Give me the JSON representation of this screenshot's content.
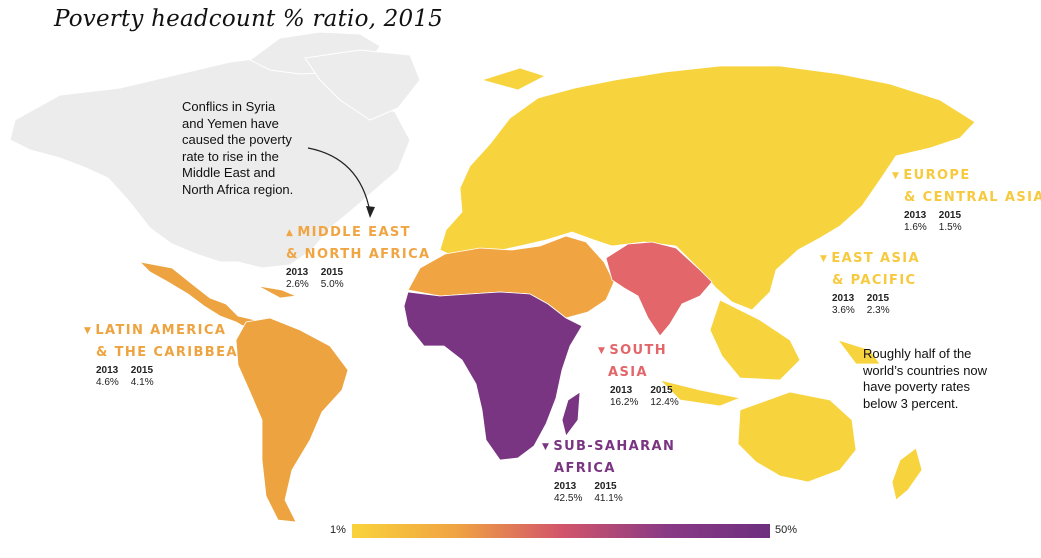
{
  "title": "Poverty headcount % ratio, 2015",
  "colors": {
    "no_data": "#ececec",
    "europe_central_asia": "#f7d33d",
    "east_asia_pacific": "#f6cc3c",
    "middle_east_north_africa": "#f0a542",
    "latin_america_caribbean": "#eda33f",
    "south_asia": "#e2666a",
    "sub_saharan_africa": "#7a3582"
  },
  "regions": [
    {
      "key": "mena",
      "name_line1": "MIDDLE EAST",
      "name_line2": "& NORTH AFRICA",
      "arrow": "▲",
      "trend": "up",
      "color": "#f0a542",
      "y2013_label": "2013",
      "y2015_label": "2015",
      "v2013": "2.6%",
      "v2015": "5.0%"
    },
    {
      "key": "eca",
      "name_line1": "EUROPE",
      "name_line2": "& CENTRAL ASIA",
      "arrow": "▼",
      "trend": "down",
      "color": "#f7c93d",
      "y2013_label": "2013",
      "y2015_label": "2015",
      "v2013": "1.6%",
      "v2015": "1.5%"
    },
    {
      "key": "eap",
      "name_line1": "EAST ASIA",
      "name_line2": "& PACIFIC",
      "arrow": "▼",
      "trend": "down",
      "color": "#f7c93d",
      "y2013_label": "2013",
      "y2015_label": "2015",
      "v2013": "3.6%",
      "v2015": "2.3%"
    },
    {
      "key": "lac",
      "name_line1": "LATIN AMERICA",
      "name_line2": "& THE CARIBBEAN",
      "arrow": "▼",
      "trend": "down",
      "color": "#eda33f",
      "y2013_label": "2013",
      "y2015_label": "2015",
      "v2013": "4.6%",
      "v2015": "4.1%"
    },
    {
      "key": "sa",
      "name_line1": "SOUTH",
      "name_line2": "ASIA",
      "arrow": "▼",
      "trend": "down",
      "color": "#e2666a",
      "y2013_label": "2013",
      "y2015_label": "2015",
      "v2013": "16.2%",
      "v2015": "12.4%"
    },
    {
      "key": "ssa",
      "name_line1": "SUB-SAHARAN",
      "name_line2": "AFRICA",
      "arrow": "▼",
      "trend": "down",
      "color": "#7a3582",
      "y2013_label": "2013",
      "y2015_label": "2015",
      "v2013": "42.5%",
      "v2015": "41.1%"
    }
  ],
  "notes": {
    "mena_lines": [
      "Conflics in Syria",
      "and Yemen have",
      "caused the poverty",
      "rate to rise in the",
      "Middle East and",
      "North Africa region."
    ],
    "global_lines": [
      "Roughly half of the",
      "world’s countries now",
      "have poverty rates",
      "below 3 percent."
    ]
  },
  "legend": {
    "min_label": "1%",
    "max_label": "50%"
  }
}
